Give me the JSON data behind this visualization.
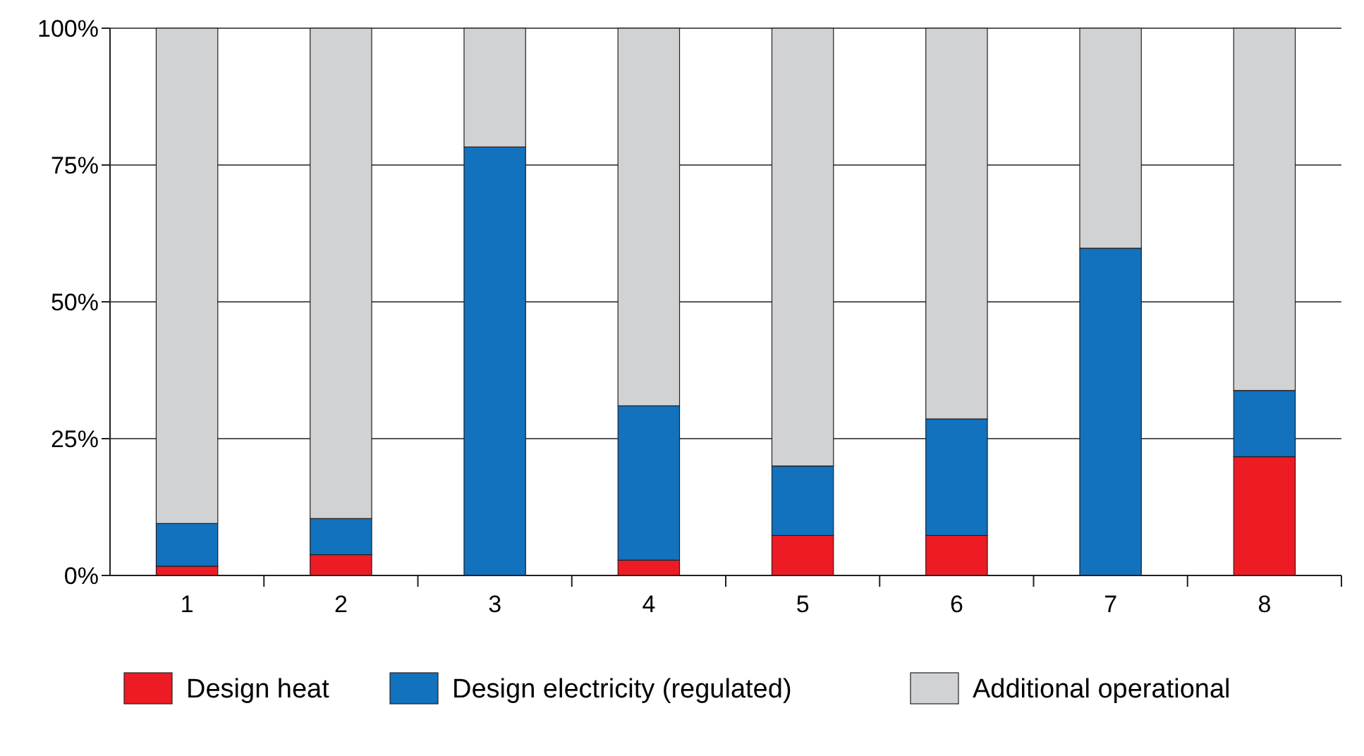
{
  "chart_data": {
    "type": "bar",
    "stacked": true,
    "categories": [
      "1",
      "2",
      "3",
      "4",
      "5",
      "6",
      "7",
      "8"
    ],
    "series": [
      {
        "name": "Design heat",
        "color": "#ed1c24",
        "values": [
          1.7,
          3.8,
          0,
          2.8,
          7.3,
          7.3,
          0,
          21.7
        ]
      },
      {
        "name": "Design electricity (regulated)",
        "color": "#1272bd",
        "values": [
          7.8,
          6.6,
          78.3,
          28.2,
          12.7,
          21.3,
          59.8,
          12.1
        ]
      },
      {
        "name": "Additional operational",
        "color": "#d1d2d4",
        "values": [
          90.5,
          89.6,
          21.7,
          69,
          80,
          71.4,
          40.2,
          66.2
        ]
      }
    ],
    "ylim": [
      0,
      100
    ],
    "yticks": [
      {
        "value": 0,
        "label": "0%"
      },
      {
        "value": 25,
        "label": "25%"
      },
      {
        "value": 50,
        "label": "50%"
      },
      {
        "value": 75,
        "label": "75%"
      },
      {
        "value": 100,
        "label": "100%"
      }
    ],
    "grid": "y",
    "legend": "bottom"
  }
}
